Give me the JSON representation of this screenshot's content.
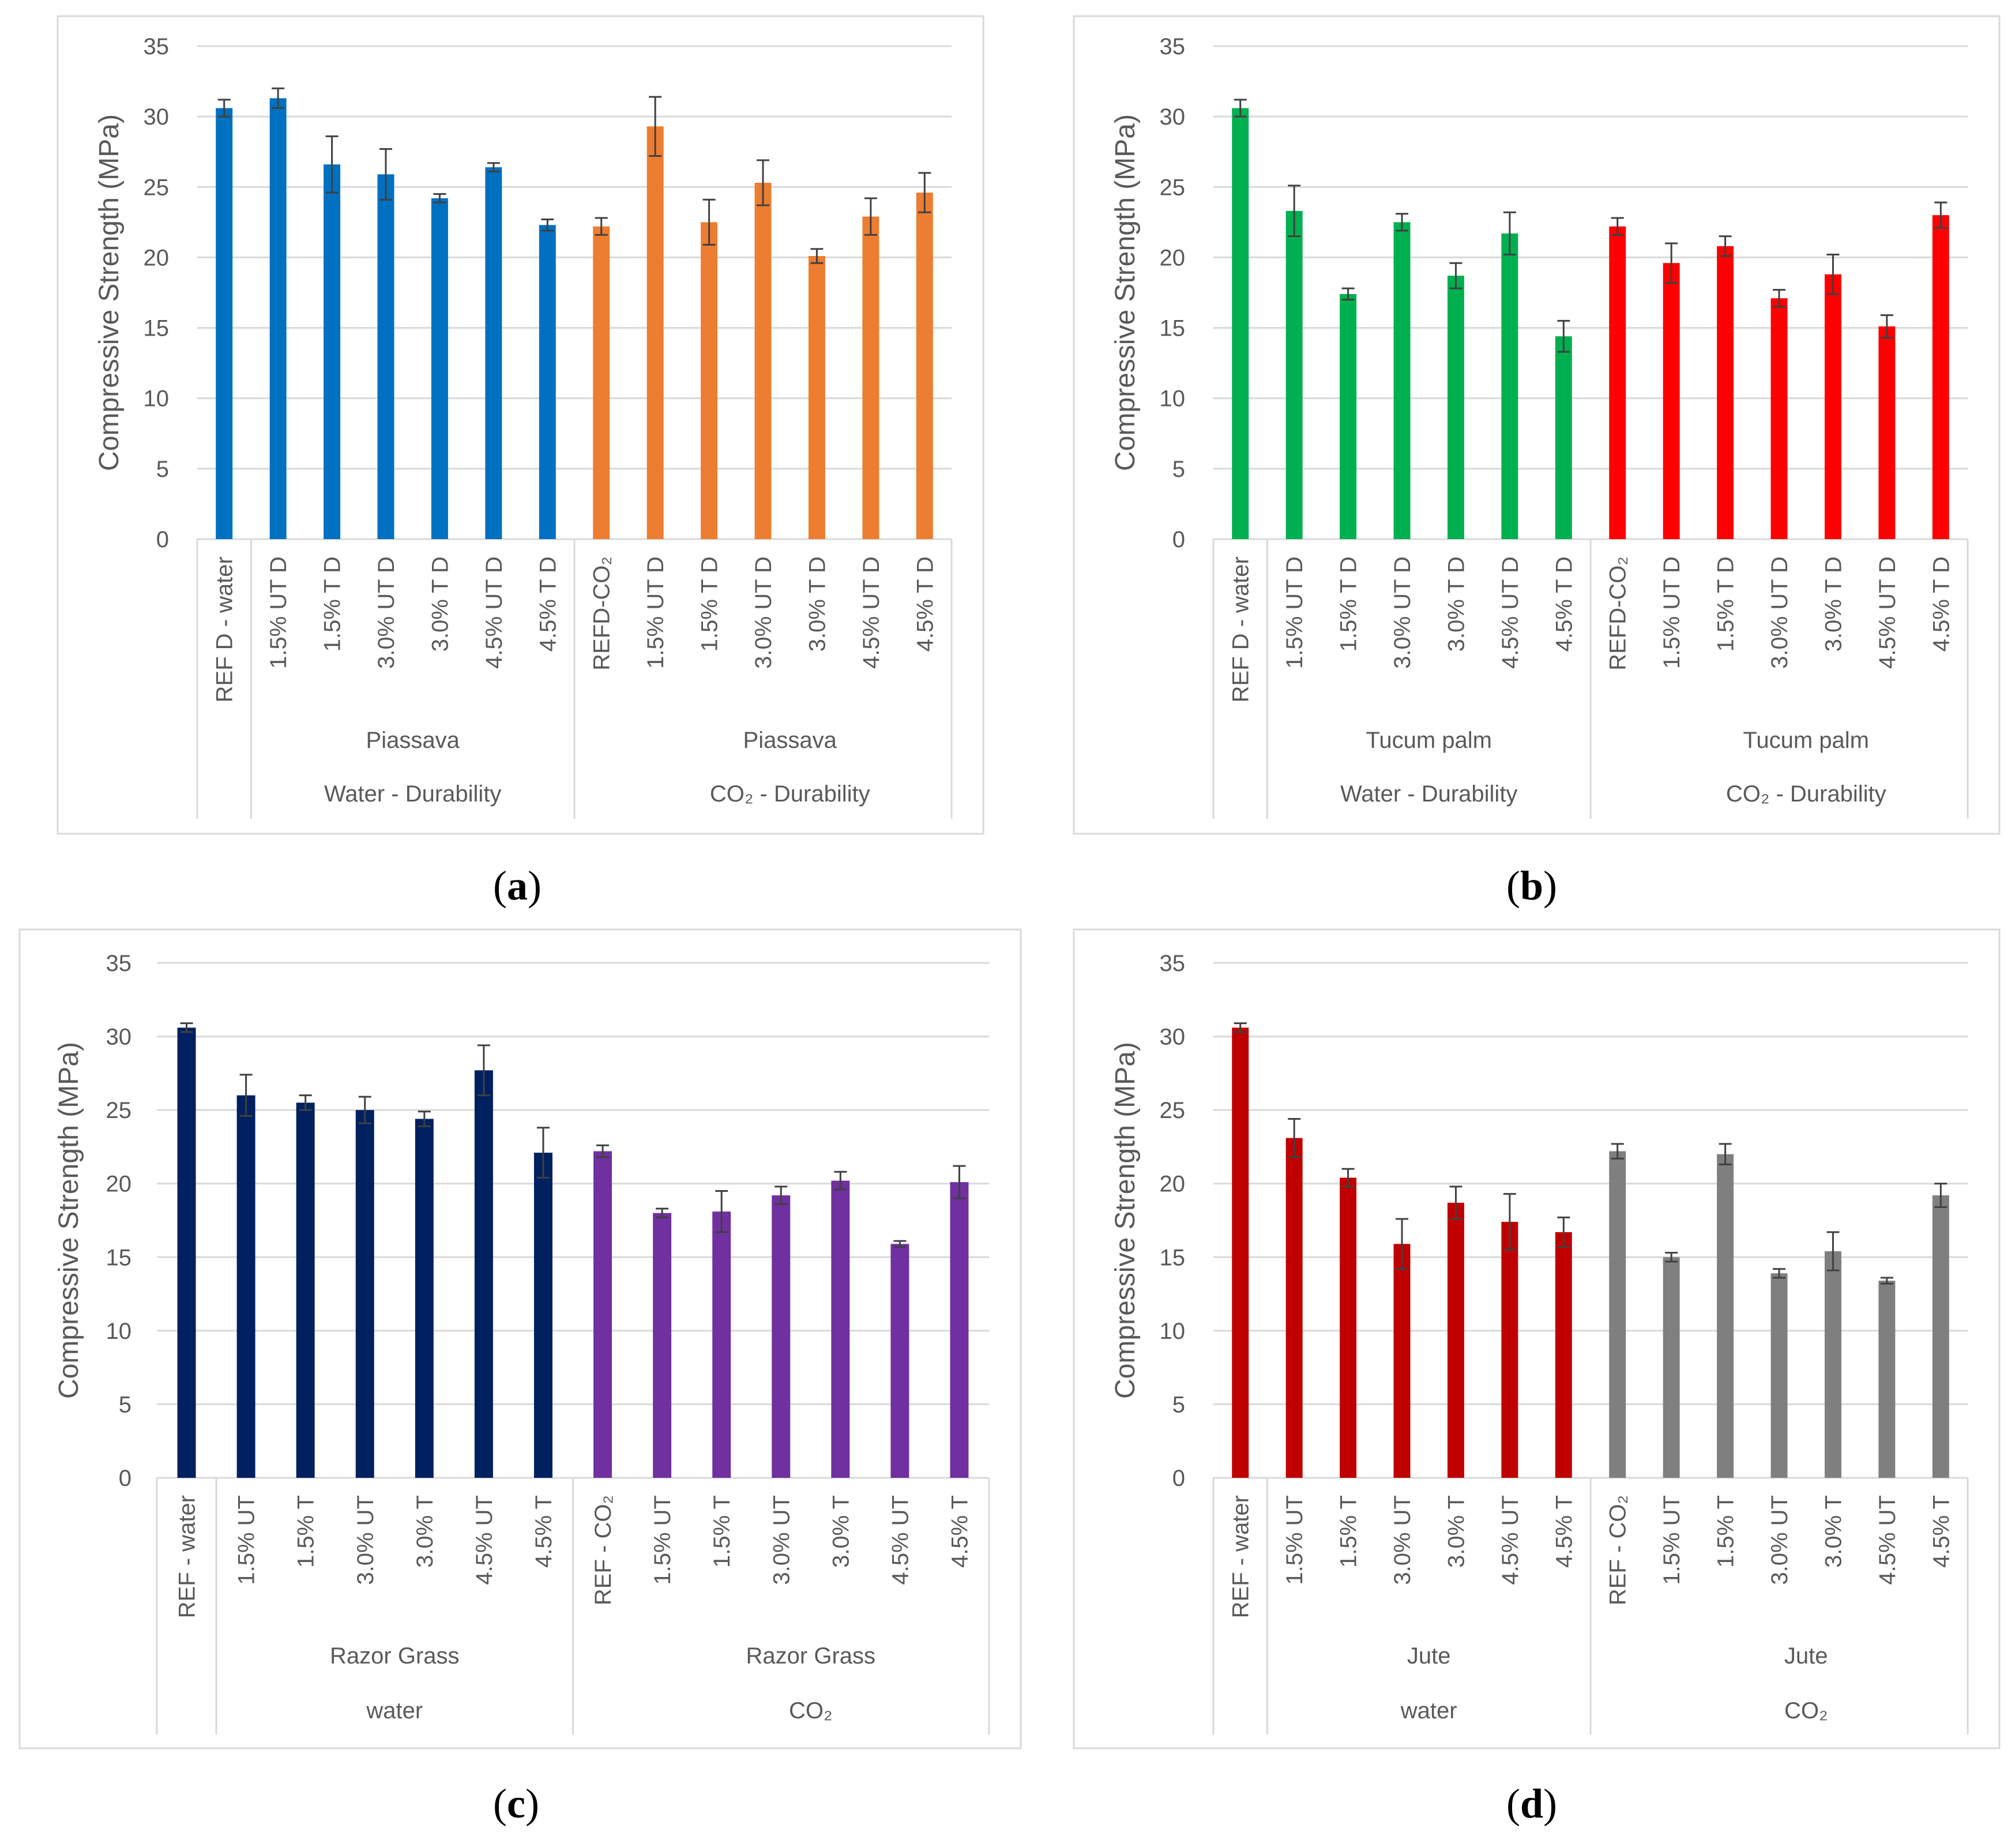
{
  "chart_data": [
    {
      "panel": "(a)",
      "type": "bar",
      "ylabel": "Compressive Strength (MPa)",
      "ylim": [
        0,
        35
      ],
      "yticks": [
        0,
        5,
        10,
        15,
        20,
        25,
        30,
        35
      ],
      "grid": true,
      "categories": [
        "REF D - water",
        "1.5% UT D",
        "1.5% T D",
        "3.0% UT D",
        "3.0% T D",
        "4.5% UT D",
        "4.5% T D",
        "REFD-CO₂",
        "1.5% UT D",
        "1.5% T D",
        "3.0% UT D",
        "3.0% T D",
        "4.5% UT D",
        "4.5% T D"
      ],
      "values": [
        30.6,
        31.3,
        26.6,
        25.9,
        24.2,
        26.4,
        22.3,
        22.2,
        29.3,
        22.5,
        25.3,
        20.1,
        22.9,
        24.6
      ],
      "errors": [
        0.6,
        0.7,
        2.0,
        1.8,
        0.3,
        0.3,
        0.4,
        0.6,
        2.1,
        1.6,
        1.6,
        0.5,
        1.3,
        1.4
      ],
      "colors": [
        "#0070c0",
        "#0070c0",
        "#0070c0",
        "#0070c0",
        "#0070c0",
        "#0070c0",
        "#0070c0",
        "#ed7d31",
        "#ed7d31",
        "#ed7d31",
        "#ed7d31",
        "#ed7d31",
        "#ed7d31",
        "#ed7d31"
      ],
      "group_level1": [
        {
          "label": "Piassava",
          "from": 1,
          "to": 6
        },
        {
          "label": "Piassava",
          "from": 8,
          "to": 13
        }
      ],
      "group_level2": [
        {
          "label": "Water - Durability",
          "from": 1,
          "to": 6
        },
        {
          "label": "CO₂ - Durability",
          "from": 8,
          "to": 13
        }
      ],
      "bar_width_ratio": 0.31
    },
    {
      "panel": "(b)",
      "type": "bar",
      "ylabel": "Compressive Strength (MPa)",
      "ylim": [
        0,
        35
      ],
      "yticks": [
        0,
        5,
        10,
        15,
        20,
        25,
        30,
        35
      ],
      "grid": true,
      "categories": [
        "REF D - water",
        "1.5% UT D",
        "1.5% T D",
        "3.0% UT D",
        "3.0% T D",
        "4.5% UT D",
        "4.5% T D",
        "REFD-CO₂",
        "1.5% UT D",
        "1.5% T D",
        "3.0% UT D",
        "3.0% T D",
        "4.5% UT D",
        "4.5% T D"
      ],
      "values": [
        30.6,
        23.3,
        17.4,
        22.5,
        18.7,
        21.7,
        14.4,
        22.2,
        19.6,
        20.8,
        17.1,
        18.8,
        15.1,
        23.0
      ],
      "errors": [
        0.6,
        1.8,
        0.4,
        0.6,
        0.9,
        1.5,
        1.1,
        0.6,
        1.4,
        0.7,
        0.6,
        1.4,
        0.8,
        0.9
      ],
      "colors": [
        "#00b050",
        "#00b050",
        "#00b050",
        "#00b050",
        "#00b050",
        "#00b050",
        "#00b050",
        "#ff0000",
        "#ff0000",
        "#ff0000",
        "#ff0000",
        "#ff0000",
        "#ff0000",
        "#ff0000"
      ],
      "group_level1": [
        {
          "label": "Tucum palm",
          "from": 1,
          "to": 6
        },
        {
          "label": "Tucum palm",
          "from": 8,
          "to": 13
        }
      ],
      "group_level2": [
        {
          "label": "Water - Durability",
          "from": 1,
          "to": 6
        },
        {
          "label": "CO₂ - Durability",
          "from": 8,
          "to": 13
        }
      ],
      "bar_width_ratio": 0.31
    },
    {
      "panel": "(c)",
      "type": "bar",
      "ylabel": "Compressive Strength (MPa)",
      "ylim": [
        0,
        35
      ],
      "yticks": [
        0,
        5,
        10,
        15,
        20,
        25,
        30,
        35
      ],
      "grid": true,
      "categories": [
        "REF - water",
        "1.5% UT",
        "1.5% T",
        "3.0% UT",
        "3.0% T",
        "4.5% UT",
        "4.5% T",
        "REF - CO₂",
        "1.5% UT",
        "1.5% T",
        "3.0% UT",
        "3.0% T",
        "4.5% UT",
        "4.5% T"
      ],
      "values": [
        30.6,
        26.0,
        25.5,
        25.0,
        24.4,
        27.7,
        22.1,
        22.2,
        18.0,
        18.1,
        19.2,
        20.2,
        15.9,
        20.1
      ],
      "errors": [
        0.3,
        1.4,
        0.5,
        0.9,
        0.5,
        1.7,
        1.7,
        0.4,
        0.3,
        1.4,
        0.6,
        0.6,
        0.2,
        1.1
      ],
      "colors": [
        "#002060",
        "#002060",
        "#002060",
        "#002060",
        "#002060",
        "#002060",
        "#002060",
        "#7030a0",
        "#7030a0",
        "#7030a0",
        "#7030a0",
        "#7030a0",
        "#7030a0",
        "#7030a0"
      ],
      "group_level1": [
        {
          "label": "Razor Grass",
          "from": 1,
          "to": 6
        },
        {
          "label": "Razor Grass",
          "from": 8,
          "to": 13
        }
      ],
      "group_level2": [
        {
          "label": "water",
          "from": 1,
          "to": 6
        },
        {
          "label": "CO₂",
          "from": 8,
          "to": 13
        }
      ],
      "bar_width_ratio": 0.31
    },
    {
      "panel": "(d)",
      "type": "bar",
      "ylabel": "Compressive Strength (MPa)",
      "ylim": [
        0,
        35
      ],
      "yticks": [
        0,
        5,
        10,
        15,
        20,
        25,
        30,
        35
      ],
      "grid": true,
      "categories": [
        "REF - water",
        "1.5% UT",
        "1.5% T",
        "3.0% UT",
        "3.0% T",
        "4.5% UT",
        "4.5% T",
        "REF - CO₂",
        "1.5% UT",
        "1.5% T",
        "3.0% UT",
        "3.0% T",
        "4.5% UT",
        "4.5% T"
      ],
      "values": [
        30.6,
        23.1,
        20.4,
        15.9,
        18.7,
        17.4,
        16.7,
        22.2,
        15.0,
        22.0,
        13.9,
        15.4,
        13.4,
        19.2
      ],
      "errors": [
        0.3,
        1.3,
        0.6,
        1.7,
        1.1,
        1.9,
        1.0,
        0.5,
        0.3,
        0.7,
        0.3,
        1.3,
        0.2,
        0.8
      ],
      "colors": [
        "#c00000",
        "#c00000",
        "#c00000",
        "#c00000",
        "#c00000",
        "#c00000",
        "#c00000",
        "#7f7f7f",
        "#7f7f7f",
        "#7f7f7f",
        "#7f7f7f",
        "#7f7f7f",
        "#7f7f7f",
        "#7f7f7f"
      ],
      "group_level1": [
        {
          "label": "Jute",
          "from": 1,
          "to": 6
        },
        {
          "label": "Jute",
          "from": 8,
          "to": 13
        }
      ],
      "group_level2": [
        {
          "label": "water",
          "from": 1,
          "to": 6
        },
        {
          "label": "CO₂",
          "from": 8,
          "to": 13
        }
      ],
      "bar_width_ratio": 0.31
    }
  ]
}
